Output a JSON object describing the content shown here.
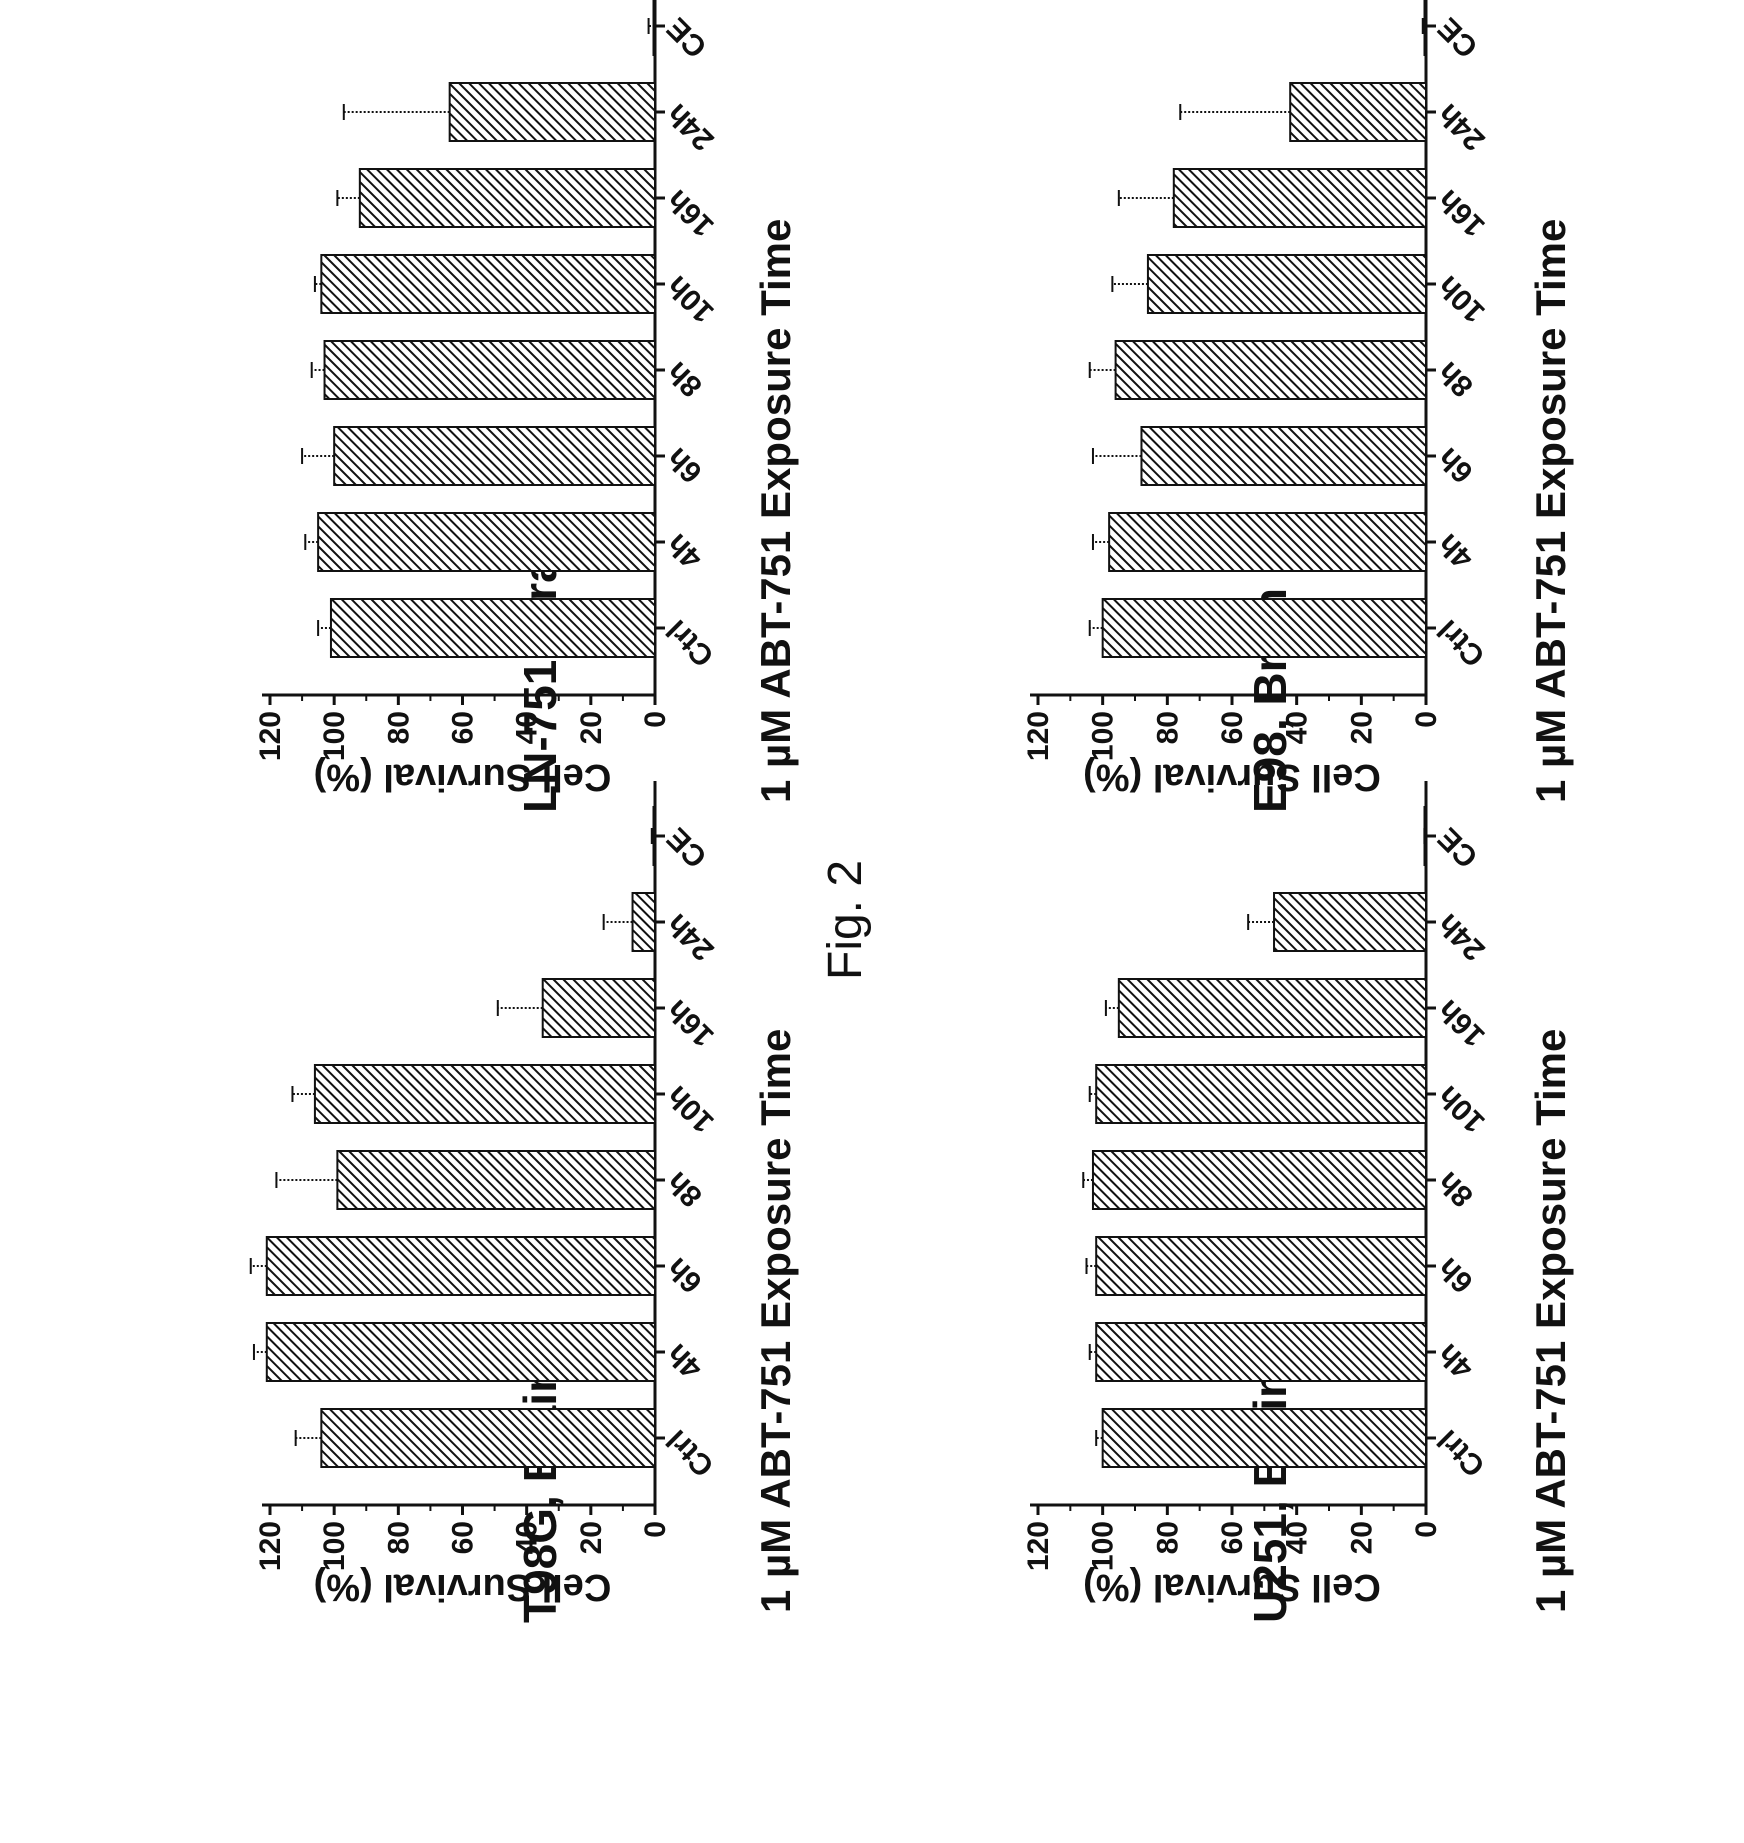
{
  "figure_label": "Fig. 2",
  "chart_data": [
    {
      "type": "bar",
      "title": "U251,  Brain",
      "categories": [
        "Ctrl",
        "4h",
        "6h",
        "8h",
        "10h",
        "16h",
        "24h",
        "CE"
      ],
      "values": [
        100,
        102,
        102,
        103,
        102,
        95,
        47,
        0
      ],
      "errors": [
        2,
        2,
        3,
        3,
        2,
        4,
        8,
        0.5
      ],
      "xlabel": "1 µM ABT-751 Exposure Time",
      "ylabel": "Cell Survival (%)",
      "ylim": [
        0,
        120
      ],
      "yticks": [
        0,
        20,
        40,
        60,
        80,
        100,
        120
      ]
    },
    {
      "type": "bar",
      "title": "E98,  Brain",
      "categories": [
        "Ctrl",
        "4h",
        "6h",
        "8h",
        "10h",
        "16h",
        "24h",
        "CE"
      ],
      "values": [
        100,
        98,
        88,
        96,
        86,
        78,
        42,
        0
      ],
      "errors": [
        4,
        5,
        15,
        8,
        11,
        17,
        34,
        1
      ],
      "xlabel": "1 µM ABT-751 Exposure Time",
      "ylabel": "Cell Survival (%)",
      "ylim": [
        0,
        120
      ],
      "yticks": [
        0,
        20,
        40,
        60,
        80,
        100,
        120
      ]
    },
    {
      "type": "bar",
      "title": "T98G, Brain",
      "categories": [
        "Ctrl",
        "4h",
        "6h",
        "8h",
        "10h",
        "16h",
        "24h",
        "CE"
      ],
      "values": [
        104,
        121,
        121,
        99,
        106,
        35,
        7,
        0
      ],
      "errors": [
        8,
        4,
        5,
        19,
        7,
        14,
        9,
        1
      ],
      "xlabel": "1 µM ABT-751 Exposure Time",
      "ylabel": "Cell Survival (%)",
      "ylim": [
        0,
        120
      ],
      "yticks": [
        0,
        20,
        40,
        60,
        80,
        100,
        120
      ]
    },
    {
      "type": "bar",
      "title": "LN-751, Brain",
      "categories": [
        "Ctrl",
        "4h",
        "6h",
        "8h",
        "10h",
        "16h",
        "24h",
        "CE"
      ],
      "values": [
        101,
        105,
        100,
        103,
        104,
        92,
        64,
        0
      ],
      "errors": [
        4,
        4,
        10,
        4,
        2,
        7,
        33,
        2
      ],
      "xlabel": "1 µM ABT-751 Exposure Time",
      "ylabel": "Cell Survival (%)",
      "ylim": [
        0,
        120
      ],
      "yticks": [
        0,
        20,
        40,
        60,
        80,
        100,
        120
      ]
    }
  ]
}
